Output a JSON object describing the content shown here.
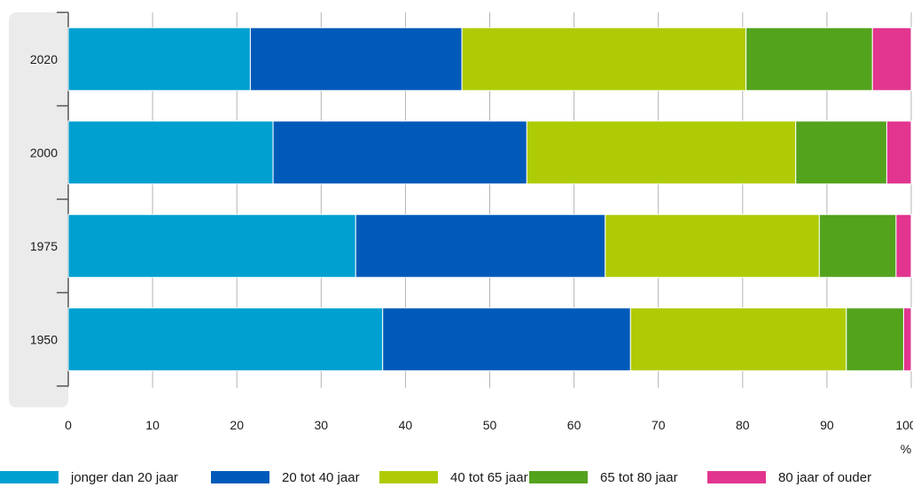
{
  "chart_data": {
    "type": "bar",
    "orientation": "horizontal",
    "stacked": true,
    "categories": [
      "2020",
      "2000",
      "1975",
      "1950"
    ],
    "series": [
      {
        "name": "jonger dan 20 jaar",
        "color": "#00a0d1",
        "values": [
          21.6,
          24.3,
          34.1,
          37.3
        ]
      },
      {
        "name": "20 tot 40 jaar",
        "color": "#005ab9",
        "values": [
          25.1,
          30.1,
          29.6,
          29.4
        ]
      },
      {
        "name": "40 tot 65 jaar",
        "color": "#afcb05",
        "values": [
          33.7,
          31.9,
          25.4,
          25.6
        ]
      },
      {
        "name": "65 tot 80 jaar",
        "color": "#53a31d",
        "values": [
          15.0,
          10.8,
          9.1,
          6.8
        ]
      },
      {
        "name": "80 jaar of ouder",
        "color": "#e1358f",
        "values": [
          4.6,
          2.9,
          1.8,
          0.9
        ]
      }
    ],
    "xlim": [
      0,
      100
    ],
    "xticks": [
      "0",
      "10",
      "20",
      "30",
      "40",
      "50",
      "60",
      "70",
      "80",
      "90",
      "100"
    ],
    "xunit": "%",
    "grid": true,
    "legend_position": "bottom"
  }
}
